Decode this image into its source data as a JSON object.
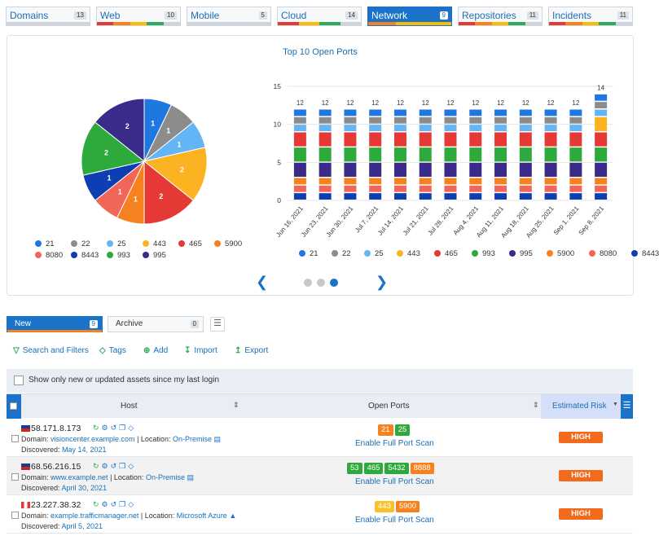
{
  "tabs": [
    {
      "label": "Domains",
      "count": "13",
      "active": false,
      "colors": [
        "#cfd4da"
      ]
    },
    {
      "label": "Web",
      "count": "10",
      "active": false,
      "colors": [
        "#e53935",
        "#f5821f",
        "#fbbc05",
        "#2eaa5c",
        "#cfd4da"
      ]
    },
    {
      "label": "Mobile",
      "count": "5",
      "active": false,
      "colors": [
        "#cfd4da"
      ]
    },
    {
      "label": "Cloud",
      "count": "14",
      "active": false,
      "colors": [
        "#e53935",
        "#fbbc05",
        "#2eaa5c",
        "#cfd4da"
      ]
    },
    {
      "label": "Network",
      "count": "9",
      "active": true,
      "colors": [
        "#f5821f",
        "#fbbc05",
        "#fbbc05"
      ]
    },
    {
      "label": "Repositories",
      "count": "11",
      "active": false,
      "colors": [
        "#e53935",
        "#f5821f",
        "#fbbc05",
        "#2eaa5c",
        "#cfd4da"
      ]
    },
    {
      "label": "Incidents",
      "count": "11",
      "active": false,
      "colors": [
        "#e53935",
        "#f5821f",
        "#fbbc05",
        "#2eaa5c",
        "#cfd4da"
      ]
    }
  ],
  "chart_data": [
    {
      "type": "pie",
      "title": "Top 10 Open Ports",
      "slices": [
        {
          "label": "21",
          "value": 1,
          "color": "#1f77e0"
        },
        {
          "label": "22",
          "value": 1,
          "color": "#8c8c8c"
        },
        {
          "label": "25",
          "value": 1,
          "color": "#64b5f6"
        },
        {
          "label": "443",
          "value": 2,
          "color": "#fbb321"
        },
        {
          "label": "465",
          "value": 2,
          "color": "#e53935"
        },
        {
          "label": "5900",
          "value": 1,
          "color": "#f5821f"
        },
        {
          "label": "8080",
          "value": 1,
          "color": "#f2665a"
        },
        {
          "label": "8443",
          "value": 1,
          "color": "#0d3fb2"
        },
        {
          "label": "993",
          "value": 2,
          "color": "#2eaa3c"
        },
        {
          "label": "995",
          "value": 2,
          "color": "#3a2a8a"
        }
      ]
    },
    {
      "type": "bar",
      "stacked": true,
      "categories": [
        "Jun 16, 2021",
        "Jun 23, 2021",
        "Jun 30, 2021",
        "Jul 7, 2021",
        "Jul 14, 2021",
        "Jul 21, 2021",
        "Jul 28, 2021",
        "Aug 4, 2021",
        "Aug 11, 2021",
        "Aug 18, 2021",
        "Aug 25, 2021",
        "Sep 1, 2021",
        "Sep 8, 2021"
      ],
      "totals": [
        "12",
        "12",
        "12",
        "12",
        "12",
        "12",
        "12",
        "12",
        "12",
        "12",
        "12",
        "12",
        "14"
      ],
      "ylim": [
        0,
        15
      ],
      "yticks": [
        "0",
        "5",
        "10",
        "15"
      ],
      "series": [
        {
          "name": "8443",
          "color": "#0d3fb2",
          "values": [
            1,
            1,
            1,
            1,
            1,
            1,
            1,
            1,
            1,
            1,
            1,
            1,
            1
          ]
        },
        {
          "name": "8080",
          "color": "#f2665a",
          "values": [
            1,
            1,
            1,
            1,
            1,
            1,
            1,
            1,
            1,
            1,
            1,
            1,
            1
          ]
        },
        {
          "name": "5900",
          "color": "#f5821f",
          "values": [
            1,
            1,
            1,
            1,
            1,
            1,
            1,
            1,
            1,
            1,
            1,
            1,
            1
          ]
        },
        {
          "name": "995",
          "color": "#3a2a8a",
          "values": [
            2,
            2,
            2,
            2,
            2,
            2,
            2,
            2,
            2,
            2,
            2,
            2,
            2
          ]
        },
        {
          "name": "993",
          "color": "#2eaa3c",
          "values": [
            2,
            2,
            2,
            2,
            2,
            2,
            2,
            2,
            2,
            2,
            2,
            2,
            2
          ]
        },
        {
          "name": "465",
          "color": "#e53935",
          "values": [
            2,
            2,
            2,
            2,
            2,
            2,
            2,
            2,
            2,
            2,
            2,
            2,
            2
          ]
        },
        {
          "name": "443",
          "color": "#fbb321",
          "values": [
            0,
            0,
            0,
            0,
            0,
            0,
            0,
            0,
            0,
            0,
            0,
            0,
            2
          ]
        },
        {
          "name": "25",
          "color": "#64b5f6",
          "values": [
            1,
            1,
            1,
            1,
            1,
            1,
            1,
            1,
            1,
            1,
            1,
            1,
            1
          ]
        },
        {
          "name": "22",
          "color": "#8c8c8c",
          "values": [
            1,
            1,
            1,
            1,
            1,
            1,
            1,
            1,
            1,
            1,
            1,
            1,
            1
          ]
        },
        {
          "name": "21",
          "color": "#1f77e0",
          "values": [
            1,
            1,
            1,
            1,
            1,
            1,
            1,
            1,
            1,
            1,
            1,
            1,
            1
          ]
        }
      ],
      "legend_order": [
        "21",
        "22",
        "25",
        "443",
        "465",
        "993",
        "995",
        "5900",
        "8080",
        "8443"
      ]
    }
  ],
  "subtabs": [
    {
      "label": "New",
      "count": "9",
      "active": true
    },
    {
      "label": "Archive",
      "count": "0",
      "active": false
    }
  ],
  "actions": [
    {
      "label": "Search and Filters",
      "icon": "filter-icon"
    },
    {
      "label": "Tags",
      "icon": "tag-icon"
    },
    {
      "label": "Add",
      "icon": "plus-icon"
    },
    {
      "label": "Import",
      "icon": "import-icon"
    },
    {
      "label": "Export",
      "icon": "export-icon"
    }
  ],
  "filter_label": "Show only new or updated assets since my last login",
  "table": {
    "headers": {
      "host": "Host",
      "ports": "Open Ports",
      "risk": "Estimated Risk"
    },
    "domain_label": "Domain:",
    "location_label": "Location:",
    "discovered_label": "Discovered:",
    "scan_label": "Enable Full Port Scan",
    "rows": [
      {
        "ip": "58.171.8.173",
        "flag": "australia-flag",
        "domain": "visioncenter.example.com",
        "location": "On-Premise",
        "discovered": "May 14, 2021",
        "ports": [
          {
            "p": "21",
            "c": "#f5821f"
          },
          {
            "p": "25",
            "c": "#2eaa3c"
          }
        ],
        "risk": "HIGH"
      },
      {
        "ip": "68.56.216.15",
        "flag": "usa-flag",
        "domain": "www.example.net",
        "location": "On-Premise",
        "discovered": "April 30, 2021",
        "ports": [
          {
            "p": "53",
            "c": "#2eaa3c"
          },
          {
            "p": "465",
            "c": "#2eaa3c"
          },
          {
            "p": "5432",
            "c": "#2eaa3c"
          },
          {
            "p": "8888",
            "c": "#f5821f"
          }
        ],
        "risk": "HIGH"
      },
      {
        "ip": "23.227.38.32",
        "flag": "canada-flag",
        "domain": "example.trafficmanager.net",
        "location": "Microsoft Azure",
        "discovered": "April 5, 2021",
        "ports": [
          {
            "p": "443",
            "c": "#fbc02d"
          },
          {
            "p": "5900",
            "c": "#f5821f"
          }
        ],
        "risk": "HIGH"
      }
    ]
  }
}
